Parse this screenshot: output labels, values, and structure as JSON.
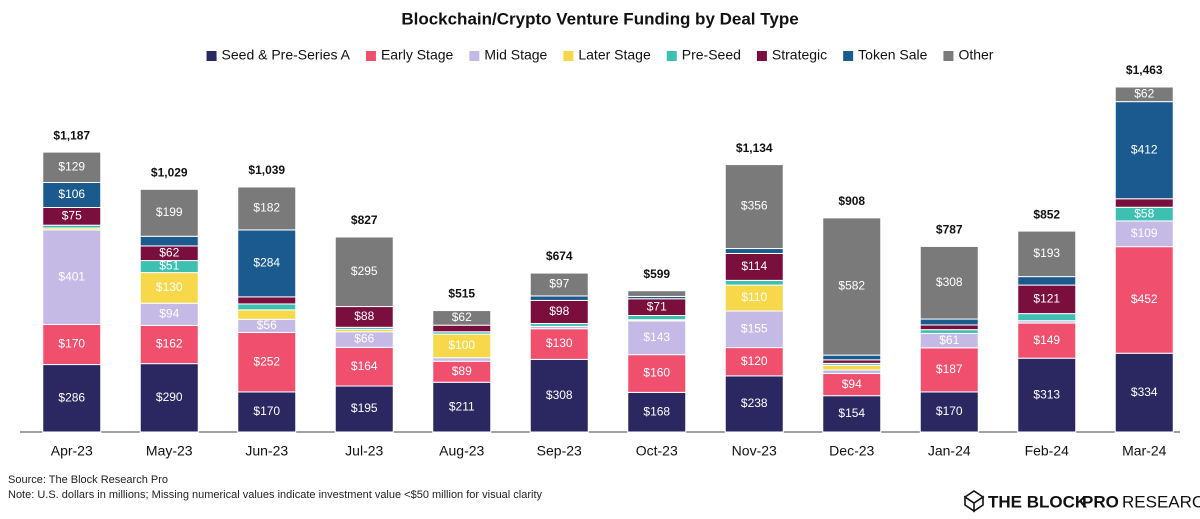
{
  "chart_data": {
    "type": "stacked_bar",
    "title": "Blockchain/Crypto Venture Funding by Deal Type",
    "categories": [
      "Apr-23",
      "May-23",
      "Jun-23",
      "Jul-23",
      "Aug-23",
      "Sep-23",
      "Oct-23",
      "Nov-23",
      "Dec-23",
      "Jan-24",
      "Feb-24",
      "Mar-24"
    ],
    "series": [
      {
        "name": "Seed & Pre-Series A",
        "color": "#2b2760",
        "values": [
          286,
          290,
          170,
          195,
          211,
          308,
          168,
          238,
          154,
          170,
          313,
          334
        ],
        "value_labels": [
          "$286",
          "$290",
          "$170",
          "$195",
          "$211",
          "$308",
          "$168",
          "$238",
          "$154",
          "$170",
          "$313",
          "$334"
        ]
      },
      {
        "name": "Early Stage",
        "color": "#f0506e",
        "values": [
          170,
          162,
          252,
          164,
          89,
          130,
          160,
          120,
          94,
          187,
          149,
          452
        ],
        "value_labels": [
          "$170",
          "$162",
          "$252",
          "$164",
          "$89",
          "$130",
          "$160",
          "$120",
          "$94",
          "$187",
          "$149",
          "$452"
        ]
      },
      {
        "name": "Mid Stage",
        "color": "#c5b9e6",
        "values": [
          401,
          94,
          56,
          66,
          15,
          10,
          143,
          155,
          15,
          61,
          10,
          109
        ],
        "value_labels": [
          "$401",
          "$94",
          "$56",
          "$66",
          null,
          null,
          "$143",
          "$155",
          null,
          "$61",
          null,
          "$109"
        ]
      },
      {
        "name": "Later Stage",
        "color": "#f6d84a",
        "values": [
          8,
          130,
          40,
          10,
          100,
          0,
          5,
          110,
          20,
          0,
          0,
          0
        ],
        "value_labels": [
          null,
          "$130",
          null,
          null,
          "$100",
          null,
          null,
          "$110",
          null,
          null,
          null,
          null
        ]
      },
      {
        "name": "Pre-Seed",
        "color": "#3dbfb1",
        "values": [
          12,
          51,
          25,
          9,
          10,
          12,
          18,
          20,
          8,
          16,
          30,
          58
        ],
        "value_labels": [
          null,
          "$51",
          null,
          null,
          null,
          null,
          null,
          null,
          null,
          null,
          null,
          "$58"
        ]
      },
      {
        "name": "Strategic",
        "color": "#7a0e3c",
        "values": [
          75,
          62,
          30,
          88,
          28,
          98,
          71,
          114,
          15,
          20,
          121,
          36
        ],
        "value_labels": [
          "$75",
          "$62",
          null,
          "$88",
          null,
          "$98",
          "$71",
          "$114",
          null,
          null,
          "$121",
          null
        ]
      },
      {
        "name": "Token Sale",
        "color": "#1a5a8f",
        "values": [
          106,
          41,
          284,
          0,
          0,
          19,
          10,
          21,
          20,
          25,
          36,
          412
        ],
        "value_labels": [
          "$106",
          null,
          "$284",
          null,
          null,
          null,
          null,
          null,
          null,
          null,
          null,
          "$412"
        ]
      },
      {
        "name": "Other",
        "color": "#7a7a7a",
        "values": [
          129,
          199,
          182,
          295,
          62,
          97,
          24,
          356,
          582,
          308,
          193,
          62
        ],
        "value_labels": [
          "$129",
          "$199",
          "$182",
          "$295",
          "$62",
          "$97",
          null,
          "$356",
          "$582",
          "$308",
          "$193",
          "$62"
        ]
      }
    ],
    "totals": {
      "values": [
        1187,
        1029,
        1039,
        827,
        515,
        674,
        599,
        1134,
        908,
        787,
        852,
        1463
      ],
      "value_labels": [
        "$1,187",
        "$1,029",
        "$1,039",
        "$827",
        "$515",
        "$674",
        "$599",
        "$1,134",
        "$908",
        "$787",
        "$852",
        "$1,463"
      ]
    },
    "legend": "top",
    "source": "Source: The Block Research Pro",
    "note": "Note: U.S. dollars in millions; Missing numerical values indicate investment value <$50 million for visual clarity"
  },
  "logo": {
    "brand": "THE BLOCK",
    "tier": "PRO",
    "product": "RESEARCH"
  }
}
